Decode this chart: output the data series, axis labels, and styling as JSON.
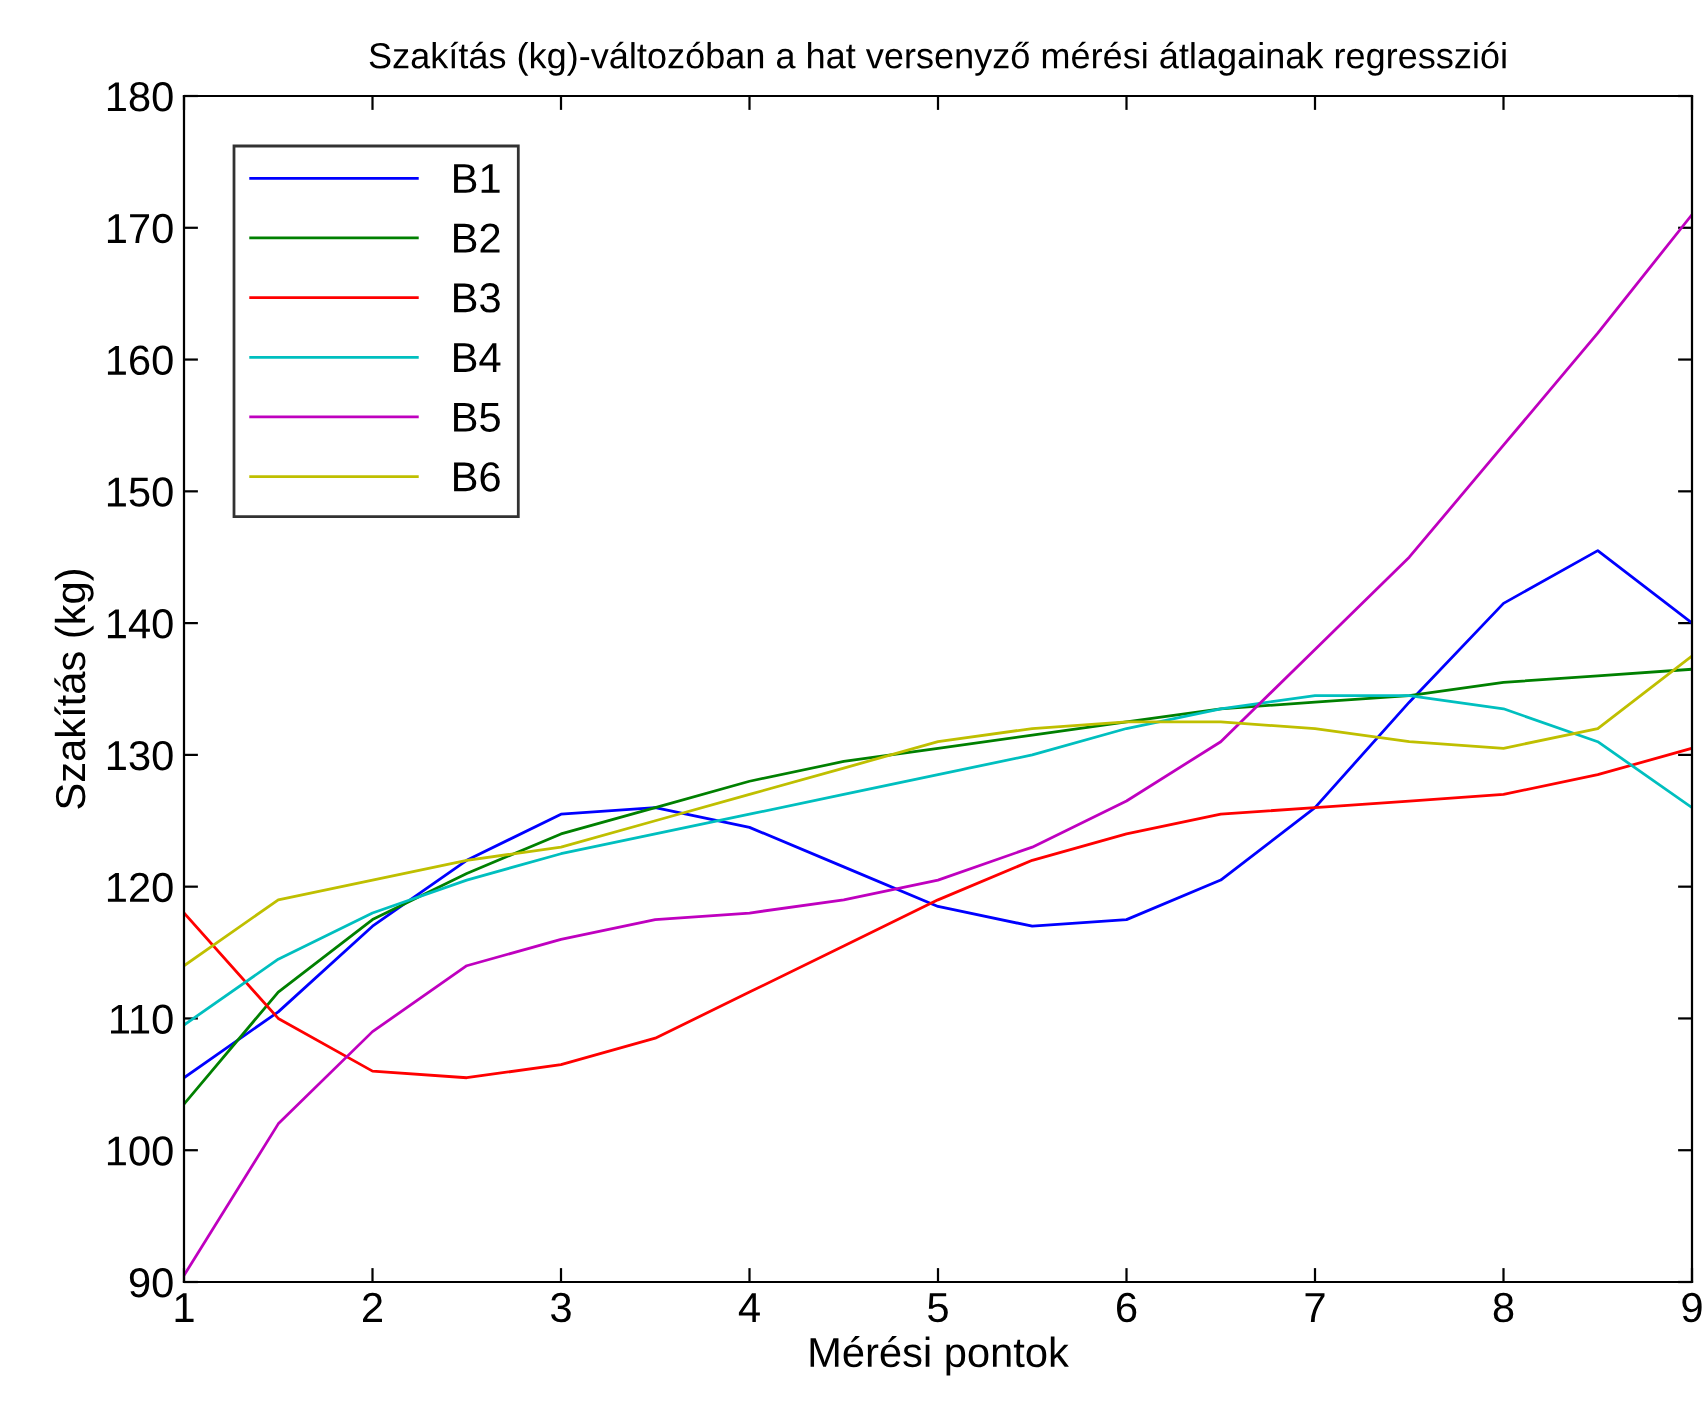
{
  "chart_data": {
    "type": "line",
    "title": "Szakítás (kg)-változóban a hat versenyző mérési átlagainak regressziói",
    "xlabel": "Mérési pontok",
    "ylabel": "Szakítás (kg)",
    "x": [
      1,
      1.5,
      2,
      2.5,
      3,
      3.5,
      4,
      4.5,
      5,
      5.5,
      6,
      6.5,
      7,
      7.5,
      8,
      8.5,
      9
    ],
    "series": [
      {
        "name": "B1",
        "color": "#0000ff",
        "values": [
          105.5,
          110.5,
          117,
          122,
          125.5,
          126,
          124.5,
          121.5,
          118.5,
          117,
          117.5,
          120.5,
          126,
          134,
          141.5,
          145.5,
          140
        ]
      },
      {
        "name": "B2",
        "color": "#008000",
        "values": [
          103.5,
          112,
          117.5,
          121,
          124,
          126,
          128,
          129.5,
          130.5,
          131.5,
          132.5,
          133.5,
          134,
          134.5,
          135.5,
          136,
          136.5
        ]
      },
      {
        "name": "B3",
        "color": "#ff0000",
        "values": [
          118,
          110,
          106,
          105.5,
          106.5,
          108.5,
          112,
          115.5,
          119,
          122,
          124,
          125.5,
          126,
          126.5,
          127,
          128.5,
          130.5
        ]
      },
      {
        "name": "B4",
        "color": "#00bfbf",
        "values": [
          109.5,
          114.5,
          118,
          120.5,
          122.5,
          124,
          125.5,
          127,
          128.5,
          130,
          132,
          133.5,
          134.5,
          134.5,
          133.5,
          131,
          126
        ]
      },
      {
        "name": "B5",
        "color": "#bf00bf",
        "values": [
          90.5,
          102,
          109,
          114,
          116,
          117.5,
          118,
          119,
          120.5,
          123,
          126.5,
          131,
          138,
          145,
          153.5,
          162,
          171
        ]
      },
      {
        "name": "B6",
        "color": "#bfbf00",
        "values": [
          114,
          119,
          120.5,
          122,
          123,
          125,
          127,
          129,
          131,
          132,
          132.5,
          132.5,
          132,
          131,
          130.5,
          132,
          137.5
        ]
      }
    ],
    "xlim": [
      1,
      9
    ],
    "xticks": [
      1,
      2,
      3,
      4,
      5,
      6,
      7,
      8,
      9
    ],
    "ylim": [
      90,
      180
    ],
    "yticks": [
      90,
      100,
      110,
      120,
      130,
      140,
      150,
      160,
      170,
      180
    ],
    "legend": "top left",
    "grid": false,
    "marker": "none",
    "line_style": "solid"
  }
}
